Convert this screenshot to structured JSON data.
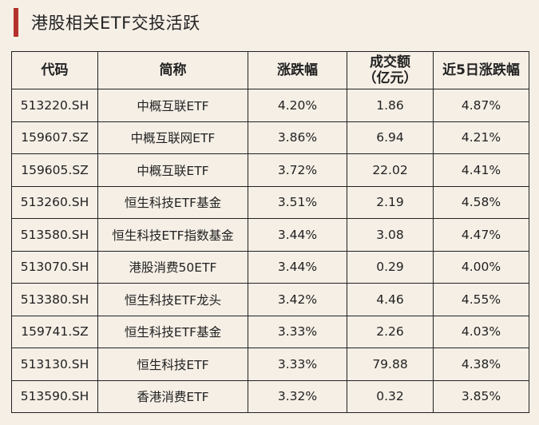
{
  "title": "港股相关ETF交投活跃",
  "table": {
    "headers": [
      "代码",
      "简称",
      "涨跌幅",
      "成交额\n（亿元）",
      "近5日涨跌幅"
    ],
    "header_lines": [
      [
        "代码"
      ],
      [
        "简称"
      ],
      [
        "涨跌幅"
      ],
      [
        "成交额",
        "（亿元）"
      ],
      [
        "近5日涨跌幅"
      ]
    ],
    "rows": [
      [
        "513220.SH",
        "中概互联ETF",
        "4.20%",
        "1.86",
        "4.87%"
      ],
      [
        "159607.SZ",
        "中概互联网ETF",
        "3.86%",
        "6.94",
        "4.21%"
      ],
      [
        "159605.SZ",
        "中概互联ETF",
        "3.72%",
        "22.02",
        "4.41%"
      ],
      [
        "513260.SH",
        "恒生科技ETF基金",
        "3.51%",
        "2.19",
        "4.58%"
      ],
      [
        "513580.SH",
        "恒生科技ETF指数基金",
        "3.44%",
        "3.08",
        "4.47%"
      ],
      [
        "513070.SH",
        "港股消费50ETF",
        "3.44%",
        "0.29",
        "4.00%"
      ],
      [
        "513380.SH",
        "恒生科技ETF龙头",
        "3.42%",
        "4.46",
        "4.55%"
      ],
      [
        "159741.SZ",
        "恒生科技ETF基金",
        "3.33%",
        "2.26",
        "4.03%"
      ],
      [
        "513130.SH",
        "恒生科技ETF",
        "3.33%",
        "79.88",
        "4.38%"
      ],
      [
        "513590.SH",
        "香港消费ETF",
        "3.32%",
        "0.32",
        "3.85%"
      ]
    ]
  },
  "colors": {
    "accent": "#b3322b",
    "background": "#f5efe6",
    "border": "#222222"
  }
}
